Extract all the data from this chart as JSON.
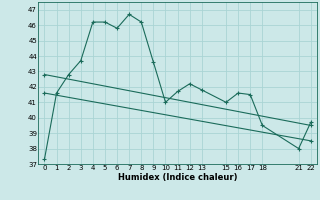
{
  "title": "",
  "xlabel": "Humidex (Indice chaleur)",
  "xlim": [
    -0.5,
    22.5
  ],
  "ylim": [
    37,
    47.5
  ],
  "yticks": [
    37,
    38,
    39,
    40,
    41,
    42,
    43,
    44,
    45,
    46,
    47
  ],
  "xticks": [
    0,
    1,
    2,
    3,
    4,
    5,
    6,
    7,
    8,
    9,
    10,
    11,
    12,
    13,
    15,
    16,
    17,
    18,
    21,
    22
  ],
  "bg_color": "#cce8e8",
  "grid_color": "#aad4d4",
  "line_color": "#1a6b5a",
  "line1_x": [
    0,
    1,
    2,
    3,
    4,
    5,
    6,
    7,
    8,
    9,
    10,
    11,
    12,
    13,
    15,
    16,
    17,
    18,
    21,
    22
  ],
  "line1_y": [
    37.3,
    41.6,
    42.8,
    43.7,
    46.2,
    46.2,
    45.8,
    46.7,
    46.2,
    43.6,
    41.0,
    41.7,
    42.2,
    41.8,
    41.0,
    41.6,
    41.5,
    39.5,
    38.0,
    39.7
  ],
  "line2_x": [
    0,
    22
  ],
  "line2_y": [
    42.8,
    39.5
  ],
  "line3_x": [
    0,
    22
  ],
  "line3_y": [
    41.6,
    38.5
  ],
  "marker": "+"
}
